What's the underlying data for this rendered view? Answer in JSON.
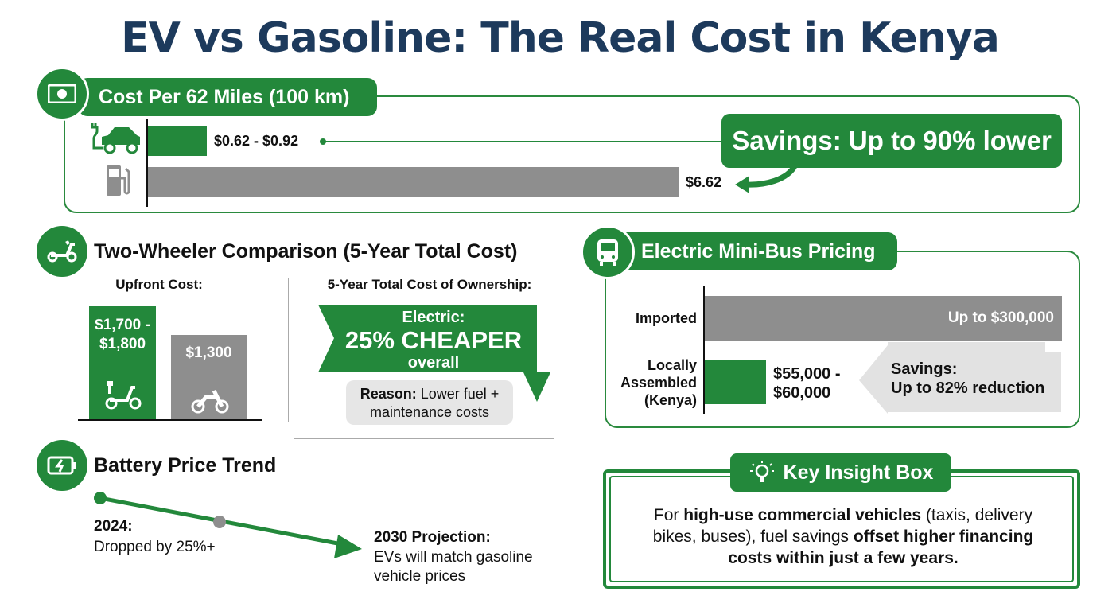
{
  "title": "EV vs Gasoline: The Real Cost in Kenya",
  "colors": {
    "green": "#23883b",
    "gray": "#8e8e8e",
    "title": "#1d3a5c"
  },
  "cost_per_distance": {
    "heading": "Cost Per 62 Miles (100 km)",
    "icon": "money-icon",
    "ev": {
      "icon": "electric-car-icon",
      "label": "$0.62 - $0.92",
      "value_range": [
        0.62,
        0.92
      ]
    },
    "gas": {
      "icon": "fuel-pump-icon",
      "label": "$6.62",
      "value": 6.62
    },
    "savings": "Savings: Up to 90% lower"
  },
  "two_wheeler": {
    "heading": "Two-Wheeler Comparison (5-Year Total Cost)",
    "icon": "scooter-icon",
    "upfront_label": "Upfront Cost:",
    "electric": {
      "label_1": "$1,700 -",
      "label_2": "$1,800",
      "value_range": [
        1700,
        1800
      ],
      "icon": "electric-scooter-icon"
    },
    "gasoline": {
      "label": "$1,300",
      "value": 1300,
      "icon": "motorcycle-icon"
    },
    "tco_label": "5-Year Total Cost of Ownership:",
    "banner": {
      "line1": "Electric:",
      "line2": "25% CHEAPER",
      "line3": "overall"
    },
    "reason": {
      "bold": "Reason:",
      "text1": " Lower fuel +",
      "text2": "maintenance costs"
    }
  },
  "battery": {
    "heading": "Battery Price Trend",
    "icon": "battery-charging-icon",
    "p2024": {
      "label": "2024:",
      "text": "Dropped by 25%+"
    },
    "p2030": {
      "label": "2030 Projection:",
      "line1": "EVs will match gasoline",
      "line2": "vehicle prices"
    }
  },
  "minibus": {
    "heading": "Electric Mini-Bus Pricing",
    "icon": "bus-icon",
    "imported": {
      "label": "Imported",
      "value_label": "Up to $300,000",
      "value": 300000
    },
    "local": {
      "label_1": "Locally",
      "label_2": "Assembled",
      "label_3": "(Kenya)",
      "value_1": "$55,000 -",
      "value_2": "$60,000",
      "value_range": [
        55000,
        60000
      ]
    },
    "savings": {
      "line1": "Savings:",
      "line2": "Up to 82% reduction"
    }
  },
  "insight": {
    "heading": "Key Insight Box",
    "icon": "lightbulb-icon",
    "l1a": "For ",
    "l1b": "high-use commercial vehicles",
    "l1c": " (taxis, delivery",
    "l2a": "bikes, buses), fuel savings ",
    "l2b": "offset higher financing",
    "l3": "costs within just a few years."
  }
}
